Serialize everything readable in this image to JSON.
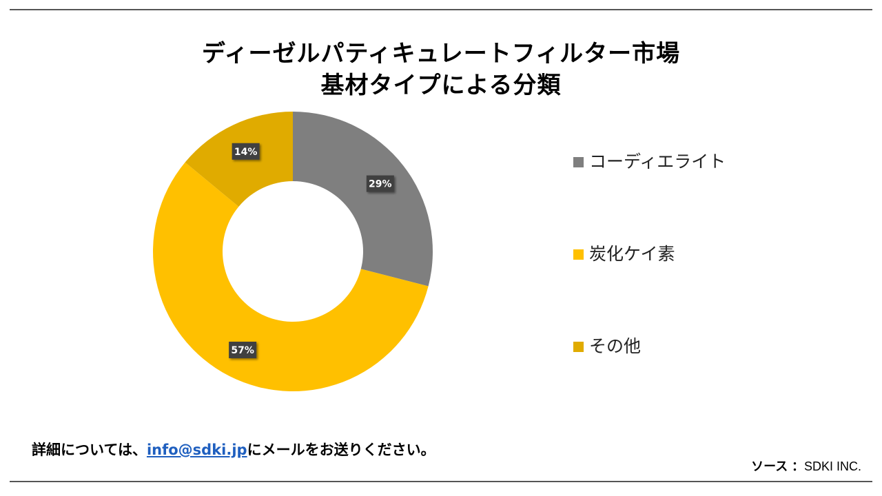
{
  "title_line1": "ディーゼルパティキュレートフィルター市場",
  "title_line2": "基材タイプによる分類",
  "chart_data": {
    "type": "pie",
    "style": "donut",
    "categories": [
      "コーディエライト",
      "炭化ケイ素",
      "その他"
    ],
    "values": [
      29,
      57,
      14
    ],
    "data_labels": [
      "29%",
      "57%",
      "14%"
    ],
    "colors": [
      "#7f7f7f",
      "#ffc000",
      "#e0ab00"
    ],
    "start_angle": "12 o'clock",
    "direction": "clockwise",
    "legend_position": "right"
  },
  "footer": {
    "note_prefix": "詳細については、",
    "email": "info@sdki.jp",
    "note_suffix": "にメールをお送りください。"
  },
  "source": {
    "label": "ソース",
    "separator": "：",
    "value": "SDKI INC."
  }
}
